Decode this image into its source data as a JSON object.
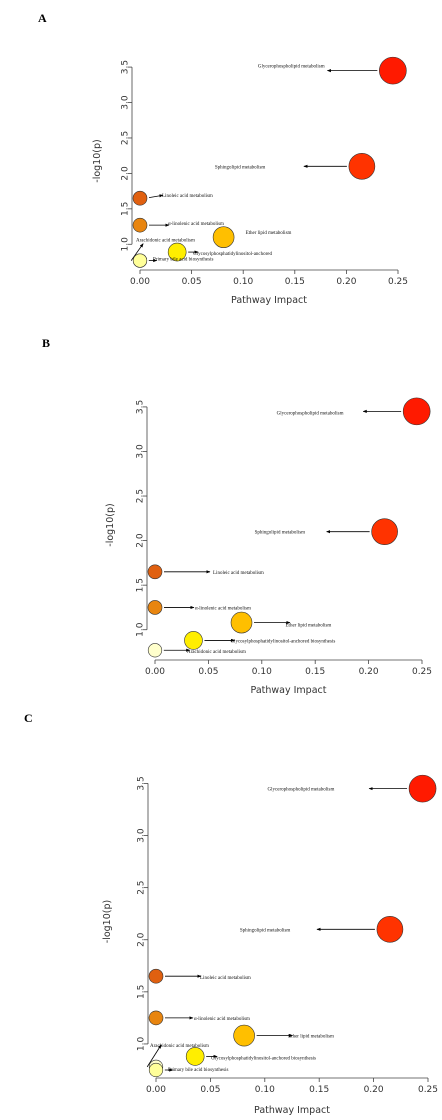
{
  "chart_data": [
    {
      "panel": "A",
      "type": "scatter",
      "xlabel": "Pathway Impact",
      "ylabel": "-log10(p)",
      "xlim": [
        0,
        0.25
      ],
      "ylim": [
        0.75,
        3.6
      ],
      "xticks": [
        "0.00",
        "0.05",
        "0.10",
        "0.15",
        "0.20",
        "0.25"
      ],
      "yticks": [
        "1.0",
        "1.5",
        "2.0",
        "2.5",
        "3.0",
        "3.5"
      ],
      "points": [
        {
          "label": "Glycerophospholipid metabolism",
          "x": 0.245,
          "y": 3.45,
          "color": "#ff1a00",
          "size": 0.95
        },
        {
          "label": "Sphingolipid metabolism",
          "x": 0.215,
          "y": 2.1,
          "color": "#ff3300",
          "size": 0.9
        },
        {
          "label": "Linoleic acid metabolism",
          "x": 0.0,
          "y": 1.65,
          "color": "#e06010",
          "size": 0.3
        },
        {
          "label": "α-linolenic acid metabolism",
          "x": 0.0,
          "y": 1.27,
          "color": "#e8850f",
          "size": 0.3
        },
        {
          "label": "Ether lipid metabolism",
          "x": 0.081,
          "y": 1.1,
          "color": "#ffbf00",
          "size": 0.65
        },
        {
          "label": "Glycosylphosphatidylinositol-anchored",
          "x": 0.036,
          "y": 0.89,
          "color": "#ffee00",
          "size": 0.5
        },
        {
          "label": "Arachidonic acid metabolism",
          "x": 0.0,
          "y": 0.77,
          "color": "#ffffcc",
          "size": 0.28
        },
        {
          "label": "Primary bile acid biosynthesis",
          "x": 0.0,
          "y": 0.77,
          "color": "#ffff99",
          "size": 0.28
        }
      ]
    },
    {
      "panel": "B",
      "type": "scatter",
      "xlabel": "Pathway Impact",
      "ylabel": "-log10(p)",
      "xlim": [
        0,
        0.25
      ],
      "ylim": [
        0.75,
        3.6
      ],
      "xticks": [
        "0.00",
        "0.05",
        "0.10",
        "0.15",
        "0.20",
        "0.25"
      ],
      "yticks": [
        "1.0",
        "1.5",
        "2.0",
        "2.5",
        "3.0",
        "3.5"
      ],
      "points": [
        {
          "label": "Glycerophospholipid metabolism",
          "x": 0.245,
          "y": 3.45,
          "color": "#ff1a00",
          "size": 0.95
        },
        {
          "label": "Sphingolipid metabolism",
          "x": 0.215,
          "y": 2.1,
          "color": "#ff3300",
          "size": 0.9
        },
        {
          "label": "Linoleic acid metabolism",
          "x": 0.0,
          "y": 1.65,
          "color": "#e06010",
          "size": 0.3
        },
        {
          "label": "α-linolenic acid metabolism",
          "x": 0.0,
          "y": 1.25,
          "color": "#e8850f",
          "size": 0.3
        },
        {
          "label": "Ether lipid metabolism",
          "x": 0.081,
          "y": 1.08,
          "color": "#ffbf00",
          "size": 0.65
        },
        {
          "label": "Glycosylphosphatidylinositol-anchored biosynthesis",
          "x": 0.036,
          "y": 0.88,
          "color": "#ffee00",
          "size": 0.5
        },
        {
          "label": "Arachidonic acid metabolism",
          "x": 0.0,
          "y": 0.77,
          "color": "#ffffcc",
          "size": 0.28
        }
      ]
    },
    {
      "panel": "C",
      "type": "scatter",
      "xlabel": "Pathway Impact",
      "ylabel": "-log10(p)",
      "xlim": [
        0,
        0.25
      ],
      "ylim": [
        0.75,
        3.6
      ],
      "xticks": [
        "0.00",
        "0.05",
        "0.10",
        "0.15",
        "0.20",
        "0.25"
      ],
      "yticks": [
        "1.0",
        "1.5",
        "2.0",
        "2.5",
        "3.0",
        "3.5"
      ],
      "points": [
        {
          "label": "Glycerophospholipid metabolism",
          "x": 0.245,
          "y": 3.45,
          "color": "#ff1a00",
          "size": 0.95
        },
        {
          "label": "Sphingolipid metabolism",
          "x": 0.215,
          "y": 2.1,
          "color": "#ff3300",
          "size": 0.9
        },
        {
          "label": "Linoleic acid metabolism",
          "x": 0.0,
          "y": 1.65,
          "color": "#e06010",
          "size": 0.3
        },
        {
          "label": "α-linolenic acid metabolism",
          "x": 0.0,
          "y": 1.25,
          "color": "#e8850f",
          "size": 0.3
        },
        {
          "label": "Ether lipid metabolism",
          "x": 0.081,
          "y": 1.08,
          "color": "#ffbf00",
          "size": 0.65
        },
        {
          "label": "Glycosylphosphatidylinositol-anchored biosynthesis",
          "x": 0.036,
          "y": 0.88,
          "color": "#ffee00",
          "size": 0.5
        },
        {
          "label": "Arachidonic acid metabolism",
          "x": 0.0,
          "y": 0.78,
          "color": "#ffffcc",
          "size": 0.28
        },
        {
          "label": "Primary bile acid biosynthesis",
          "x": 0.0,
          "y": 0.75,
          "color": "#ffff99",
          "size": 0.28
        }
      ]
    }
  ]
}
